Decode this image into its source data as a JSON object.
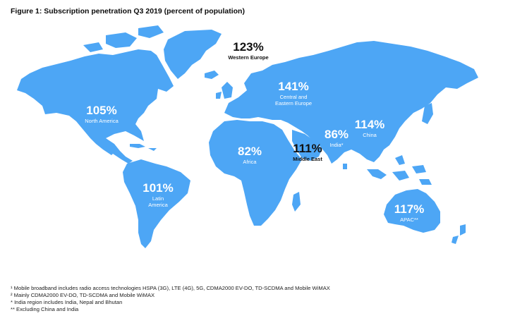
{
  "title": "Figure 1: Subscription penetration Q3 2019 (percent of population)",
  "map_color": "#4da6f5",
  "regions": {
    "north_america": {
      "value": "105%",
      "name": "North America"
    },
    "latin_america": {
      "value": "101%",
      "name": "Latin America"
    },
    "western_europe": {
      "value": "123%",
      "name": "Western Europe"
    },
    "central_eastern_europe": {
      "value": "141%",
      "name": "Central and Eastern Europe"
    },
    "africa": {
      "value": "82%",
      "name": "Africa"
    },
    "middle_east": {
      "value": "111%",
      "name": "Middle East"
    },
    "india": {
      "value": "86%",
      "name": "India*"
    },
    "china": {
      "value": "114%",
      "name": "China"
    },
    "apac": {
      "value": "117%",
      "name": "APAC**"
    }
  },
  "footnotes": [
    "¹ Mobile broadband includes radio access technologies HSPA (3G), LTE (4G), 5G, CDMA2000 EV-DO, TD-SCDMA and Mobile WiMAX",
    "² Mainly CDMA2000 EV-DO, TD-SCDMA and Mobile WiMAX",
    "* India region includes India, Nepal and Bhutan",
    "** Excluding China and India"
  ]
}
